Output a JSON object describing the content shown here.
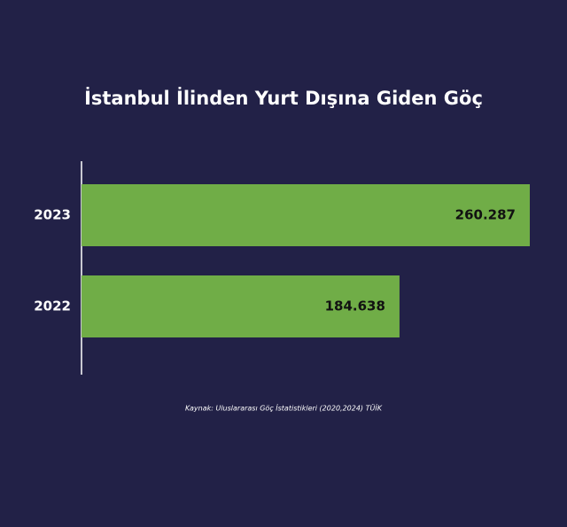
{
  "chart_data": {
    "type": "barh",
    "title": "İstanbul İlinden Yurt Dışına Giden Göç",
    "categories": [
      "2023",
      "2022"
    ],
    "values": [
      260287,
      184638
    ],
    "value_labels": [
      "260.287",
      "184.638"
    ],
    "color": "#70ad47",
    "source": "Kaynak: Uluslararası Göç İstatistikleri (2020,2024) TÜİK"
  }
}
